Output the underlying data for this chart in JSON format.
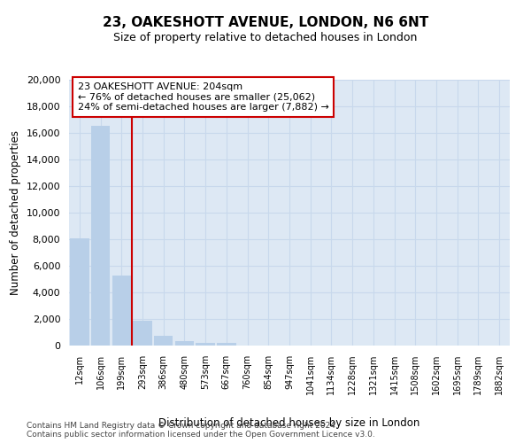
{
  "title1": "23, OAKESHOTT AVENUE, LONDON, N6 6NT",
  "title2": "Size of property relative to detached houses in London",
  "xlabel": "Distribution of detached houses by size in London",
  "ylabel": "Number of detached properties",
  "categories": [
    "12sqm",
    "106sqm",
    "199sqm",
    "293sqm",
    "386sqm",
    "480sqm",
    "573sqm",
    "667sqm",
    "760sqm",
    "854sqm",
    "947sqm",
    "1041sqm",
    "1134sqm",
    "1228sqm",
    "1321sqm",
    "1415sqm",
    "1508sqm",
    "1602sqm",
    "1695sqm",
    "1789sqm",
    "1882sqm"
  ],
  "values": [
    8100,
    16500,
    5300,
    1850,
    750,
    320,
    230,
    220,
    0,
    0,
    0,
    0,
    0,
    0,
    0,
    0,
    0,
    0,
    0,
    0,
    0
  ],
  "bar_color": "#b8cfe8",
  "bar_edge_color": "#b8cfe8",
  "grid_color": "#c8d8ec",
  "bg_color": "#dde8f4",
  "vline_color": "#cc0000",
  "vline_x": 2.5,
  "annotation_line1": "23 OAKESHOTT AVENUE: 204sqm",
  "annotation_line2": "← 76% of detached houses are smaller (25,062)",
  "annotation_line3": "24% of semi-detached houses are larger (7,882) →",
  "annotation_box_facecolor": "#ffffff",
  "annotation_box_edgecolor": "#cc0000",
  "ylim_max": 20000,
  "yticks": [
    0,
    2000,
    4000,
    6000,
    8000,
    10000,
    12000,
    14000,
    16000,
    18000,
    20000
  ],
  "footer1": "Contains HM Land Registry data © Crown copyright and database right 2024.",
  "footer2": "Contains public sector information licensed under the Open Government Licence v3.0."
}
